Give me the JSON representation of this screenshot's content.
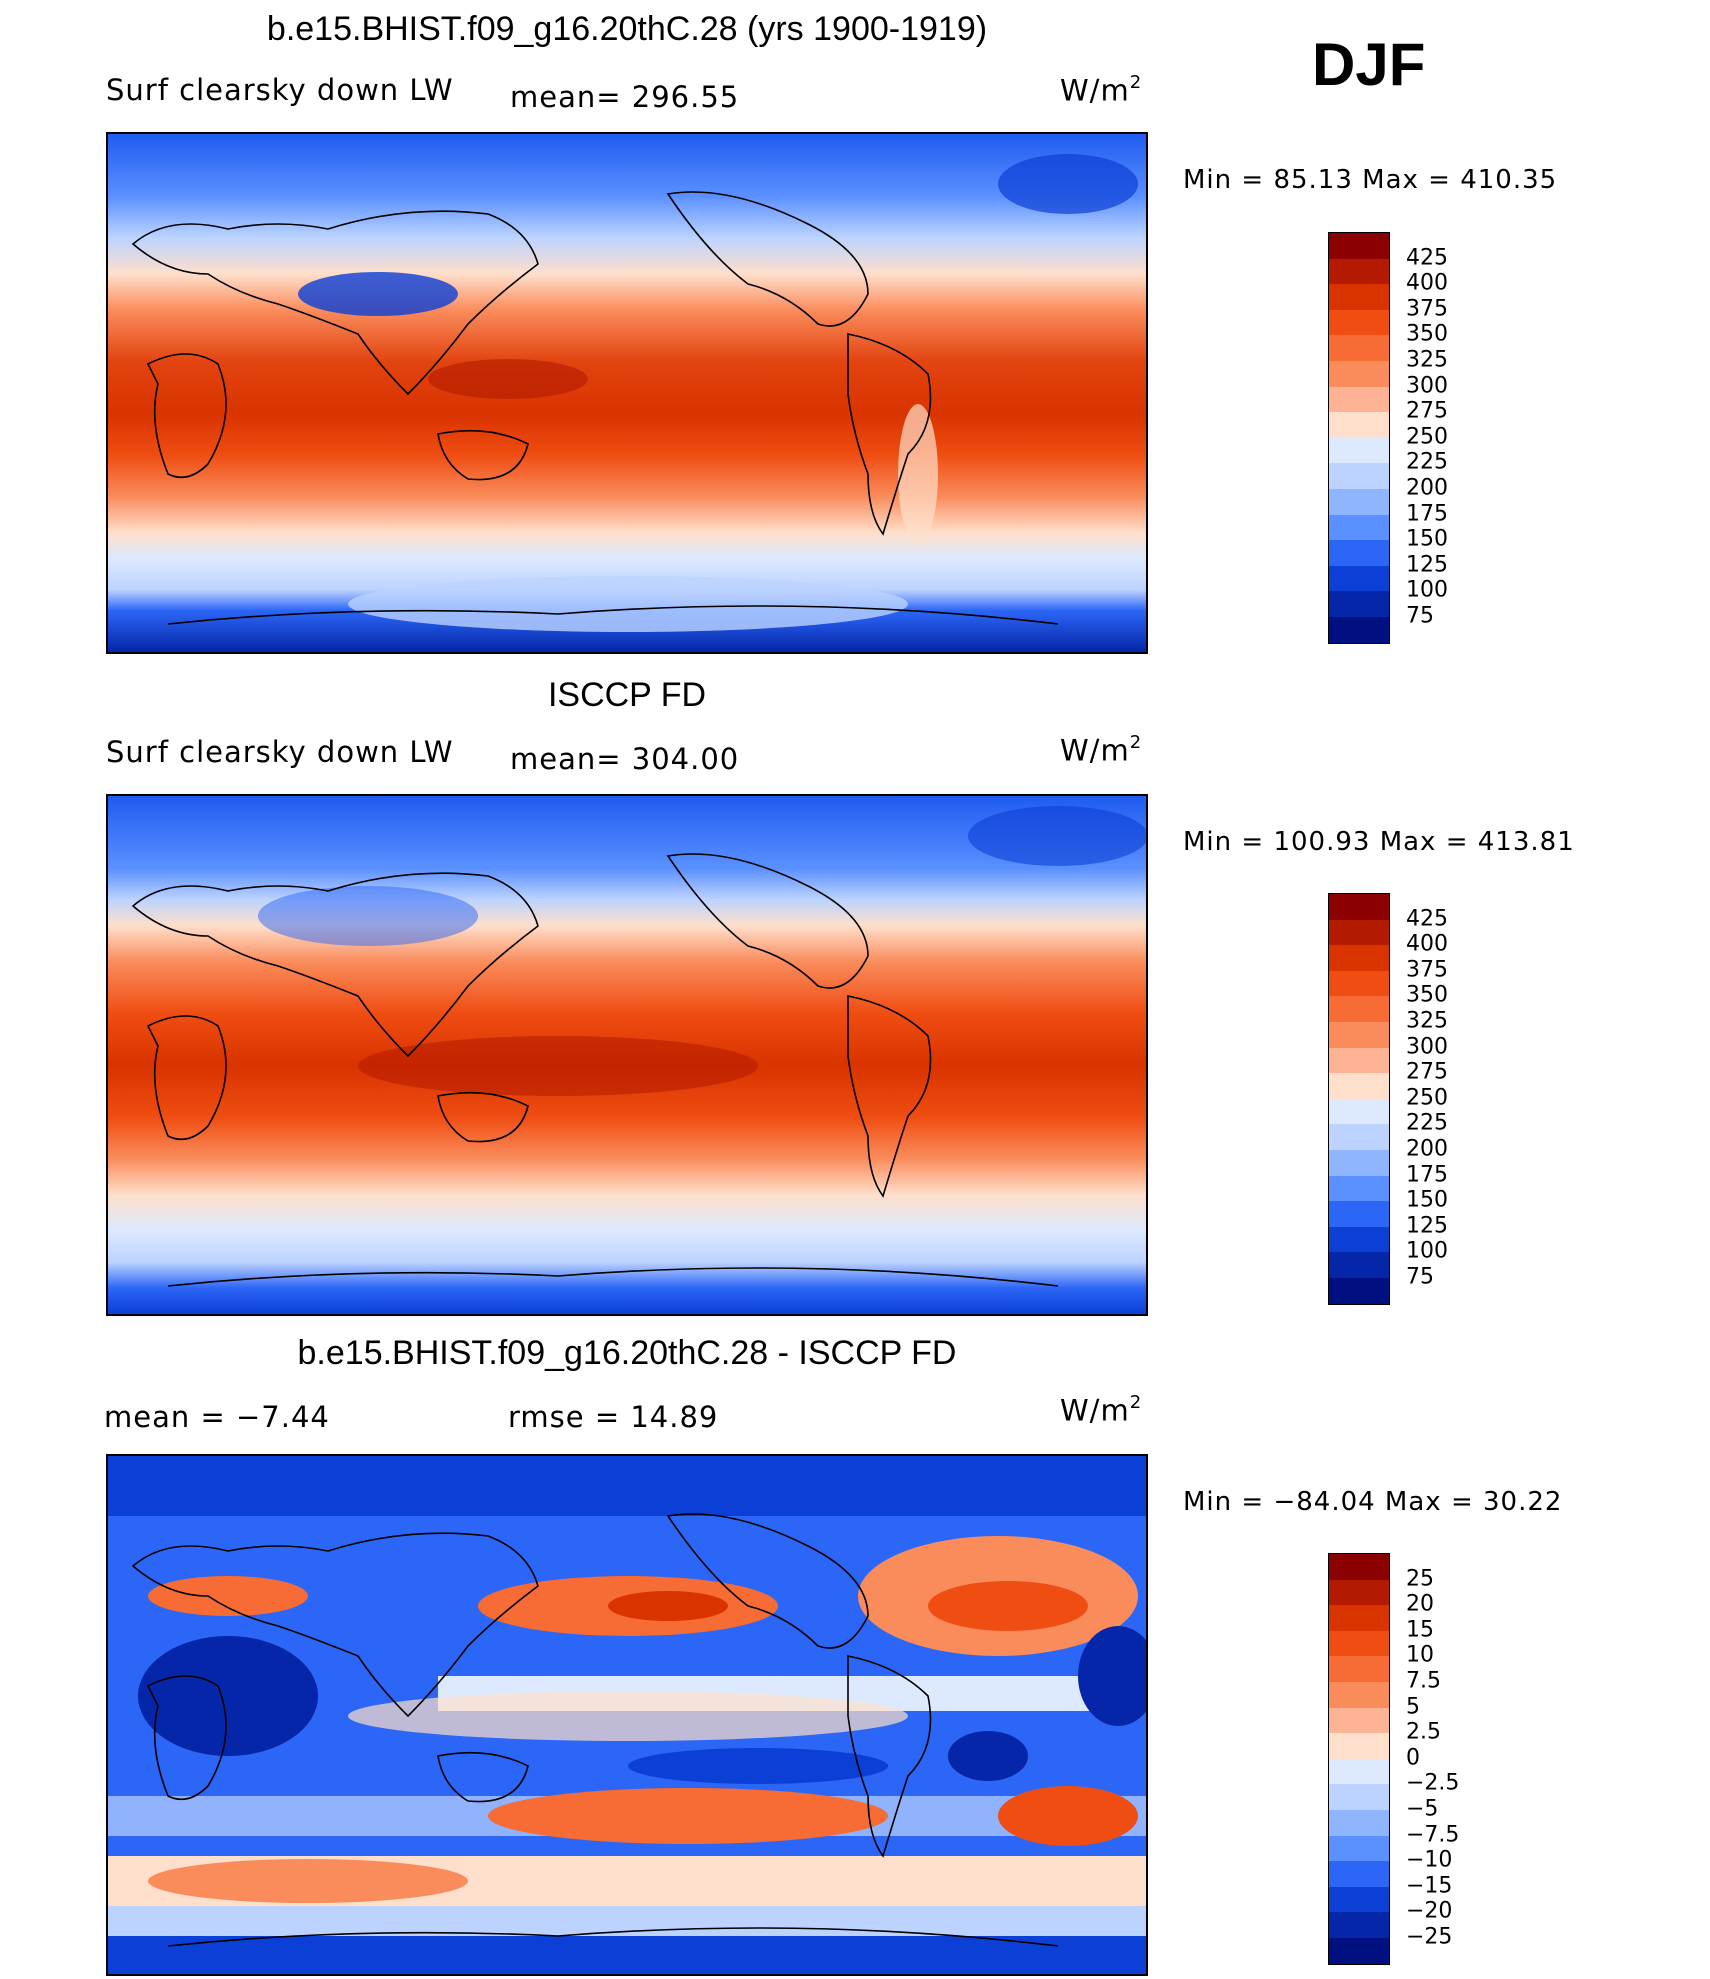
{
  "season": "DJF",
  "panels": [
    {
      "id": "model",
      "title": "b.e15.BHIST.f09_g16.20thC.28 (yrs 1900-1919)",
      "left_label": "Surf clearsky down LW",
      "stat_label": "mean= 296.55",
      "units": "W/m",
      "units_sup": "2",
      "minmax": "Min =   85.13 Max = 410.35",
      "colorbar": {
        "labels": [
          "425",
          "400",
          "375",
          "350",
          "325",
          "300",
          "275",
          "250",
          "225",
          "200",
          "175",
          "150",
          "125",
          "100",
          "75"
        ],
        "colors": [
          "#8b0000",
          "#b31a00",
          "#d93300",
          "#ef4d12",
          "#f76b34",
          "#fa8c5c",
          "#fdb394",
          "#fedfcb",
          "#dce9ff",
          "#bcd3ff",
          "#8fb5ff",
          "#5a90ff",
          "#2c66f6",
          "#0b3fd6",
          "#0526a8",
          "#001080"
        ]
      }
    },
    {
      "id": "obs",
      "title": "ISCCP FD",
      "left_label": "Surf clearsky down LW",
      "stat_label": "mean= 304.00",
      "units": "W/m",
      "units_sup": "2",
      "minmax": "Min = 100.93 Max = 413.81",
      "colorbar": {
        "labels": [
          "425",
          "400",
          "375",
          "350",
          "325",
          "300",
          "275",
          "250",
          "225",
          "200",
          "175",
          "150",
          "125",
          "100",
          "75"
        ],
        "colors": [
          "#8b0000",
          "#b31a00",
          "#d93300",
          "#ef4d12",
          "#f76b34",
          "#fa8c5c",
          "#fdb394",
          "#fedfcb",
          "#dce9ff",
          "#bcd3ff",
          "#8fb5ff",
          "#5a90ff",
          "#2c66f6",
          "#0b3fd6",
          "#0526a8",
          "#001080"
        ]
      }
    },
    {
      "id": "diff",
      "title": "b.e15.BHIST.f09_g16.20thC.28 - ISCCP FD",
      "left_label": "mean =   −7.44",
      "stat_label": "rmse =   14.89",
      "units": "W/m",
      "units_sup": "2",
      "minmax": "Min = −84.04 Max =   30.22",
      "colorbar": {
        "labels": [
          "25",
          "20",
          "15",
          "10",
          "7.5",
          "5",
          "2.5",
          "0",
          "−2.5",
          "−5",
          "−7.5",
          "−10",
          "−15",
          "−20",
          "−25"
        ],
        "colors": [
          "#8b0000",
          "#b31a00",
          "#d93300",
          "#ef4d12",
          "#f76b34",
          "#fa8c5c",
          "#fdb394",
          "#fedfcb",
          "#dce9ff",
          "#bcd3ff",
          "#8fb5ff",
          "#5a90ff",
          "#2c66f6",
          "#0b3fd6",
          "#0526a8",
          "#001080"
        ]
      }
    }
  ]
}
